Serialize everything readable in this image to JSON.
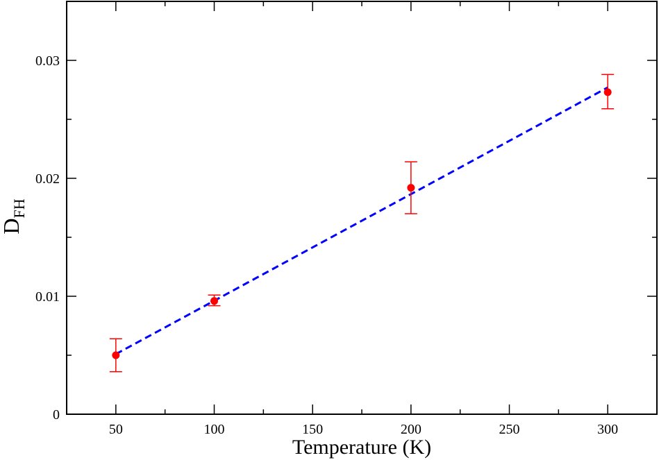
{
  "chart_data": {
    "type": "scatter",
    "xlabel": "Temperature (K)",
    "ylabel": "D",
    "ylabel_subscript": "FH",
    "xlim": [
      25,
      325
    ],
    "ylim": [
      0,
      0.035
    ],
    "xticks": [
      50,
      100,
      150,
      200,
      250,
      300
    ],
    "xtick_labels": [
      "50",
      "100",
      "150",
      "200",
      "250",
      "300"
    ],
    "yticks": [
      0,
      0.01,
      0.02,
      0.03
    ],
    "ytick_labels": [
      "0",
      "0.01",
      "0.02",
      "0.03"
    ],
    "grid": false,
    "series": [
      {
        "style": "markers-with-errorbars",
        "color": "#ff0000",
        "points": [
          {
            "x": 50,
            "y": 0.005,
            "err_low": 0.0036,
            "err_high": 0.0064
          },
          {
            "x": 100,
            "y": 0.0096,
            "err_low": 0.0092,
            "err_high": 0.0101
          },
          {
            "x": 200,
            "y": 0.0192,
            "err_low": 0.017,
            "err_high": 0.0214
          },
          {
            "x": 300,
            "y": 0.0273,
            "err_low": 0.0259,
            "err_high": 0.0288
          }
        ]
      },
      {
        "style": "dashed-fit-line",
        "color": "#0000ff",
        "x": [
          50,
          300
        ],
        "y": [
          0.0051,
          0.0277
        ]
      }
    ]
  }
}
